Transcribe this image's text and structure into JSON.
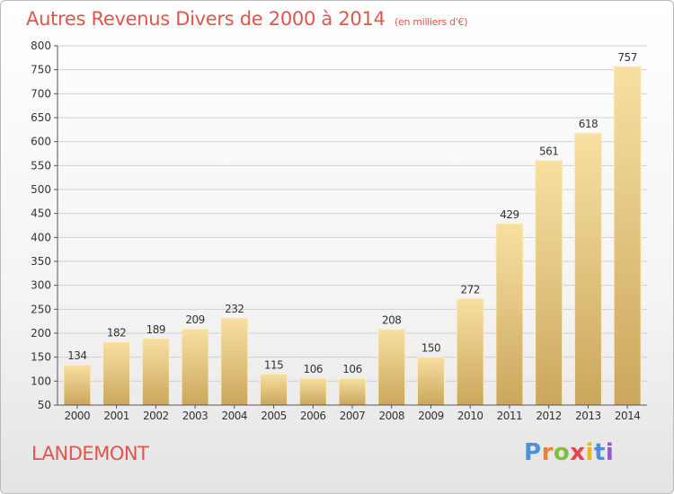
{
  "header": {
    "title": "Autres Revenus Divers de 2000 à 2014",
    "unit": "(en milliers d'€)"
  },
  "footer": {
    "commune": "LANDEMONT",
    "logo": "Proxiti"
  },
  "colors": {
    "title": "#e3544a",
    "bar_light": "#f7dc9a",
    "bar_dark": "#c9a65a"
  },
  "chart_data": {
    "type": "bar",
    "title": "Autres Revenus Divers de 2000 à 2014",
    "subtitle": "(en milliers d'€)",
    "xlabel": "",
    "ylabel": "",
    "categories": [
      "2000",
      "2001",
      "2002",
      "2003",
      "2004",
      "2005",
      "2006",
      "2007",
      "2008",
      "2009",
      "2010",
      "2011",
      "2012",
      "2013",
      "2014"
    ],
    "values": [
      134,
      182,
      189,
      209,
      232,
      115,
      106,
      106,
      208,
      150,
      272,
      429,
      561,
      618,
      757
    ],
    "ylim": [
      50,
      800
    ],
    "yticks": [
      50,
      100,
      150,
      200,
      250,
      300,
      350,
      400,
      450,
      500,
      550,
      600,
      650,
      700,
      750,
      800
    ],
    "grid": true,
    "legend": "none"
  }
}
